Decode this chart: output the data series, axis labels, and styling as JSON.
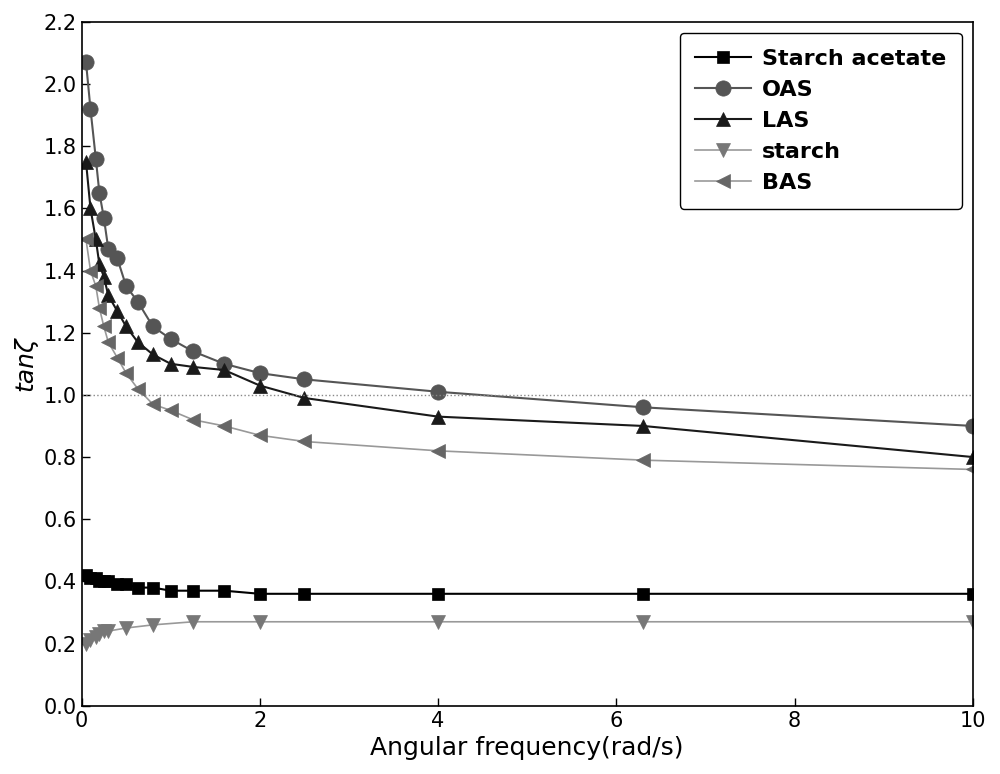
{
  "title": "",
  "xlabel": "Angular frequency(rad/s)",
  "ylabel": "tanζ",
  "xlim": [
    0,
    10
  ],
  "ylim": [
    0.0,
    2.2
  ],
  "yticks": [
    0.0,
    0.2,
    0.4,
    0.6,
    0.8,
    1.0,
    1.2,
    1.4,
    1.6,
    1.8,
    2.0,
    2.2
  ],
  "xticks": [
    0,
    2,
    4,
    6,
    8,
    10
  ],
  "hline_y": 1.0,
  "series": [
    {
      "label": "Starch acetate",
      "line_color": "#000000",
      "marker_color": "#000000",
      "marker": "s",
      "markersize": 9,
      "linewidth": 1.5,
      "x": [
        0.05,
        0.1,
        0.16,
        0.2,
        0.25,
        0.3,
        0.4,
        0.5,
        0.63,
        0.8,
        1.0,
        1.25,
        1.6,
        2.0,
        2.5,
        4.0,
        6.3,
        10.0
      ],
      "y": [
        0.42,
        0.41,
        0.41,
        0.4,
        0.4,
        0.4,
        0.39,
        0.39,
        0.38,
        0.38,
        0.37,
        0.37,
        0.37,
        0.36,
        0.36,
        0.36,
        0.36,
        0.36
      ]
    },
    {
      "label": "OAS",
      "line_color": "#555555",
      "marker_color": "#555555",
      "marker": "o",
      "markersize": 11,
      "linewidth": 1.5,
      "x": [
        0.05,
        0.1,
        0.16,
        0.2,
        0.25,
        0.3,
        0.4,
        0.5,
        0.63,
        0.8,
        1.0,
        1.25,
        1.6,
        2.0,
        2.5,
        4.0,
        6.3,
        10.0
      ],
      "y": [
        2.07,
        1.92,
        1.76,
        1.65,
        1.57,
        1.47,
        1.44,
        1.35,
        1.3,
        1.22,
        1.18,
        1.14,
        1.1,
        1.07,
        1.05,
        1.01,
        0.96,
        0.9
      ]
    },
    {
      "label": "LAS",
      "line_color": "#1a1a1a",
      "marker_color": "#1a1a1a",
      "marker": "^",
      "markersize": 10,
      "linewidth": 1.5,
      "x": [
        0.05,
        0.1,
        0.16,
        0.2,
        0.25,
        0.3,
        0.4,
        0.5,
        0.63,
        0.8,
        1.0,
        1.25,
        1.6,
        2.0,
        2.5,
        4.0,
        6.3,
        10.0
      ],
      "y": [
        1.75,
        1.6,
        1.5,
        1.42,
        1.38,
        1.32,
        1.27,
        1.22,
        1.17,
        1.13,
        1.1,
        1.09,
        1.08,
        1.03,
        0.99,
        0.93,
        0.9,
        0.8
      ]
    },
    {
      "label": "starch",
      "line_color": "#999999",
      "marker_color": "#777777",
      "marker": "v",
      "markersize": 10,
      "linewidth": 1.2,
      "x": [
        0.05,
        0.1,
        0.16,
        0.2,
        0.25,
        0.3,
        0.5,
        0.8,
        1.25,
        2.0,
        4.0,
        6.3,
        10.0
      ],
      "y": [
        0.2,
        0.21,
        0.22,
        0.23,
        0.24,
        0.24,
        0.25,
        0.26,
        0.27,
        0.27,
        0.27,
        0.27,
        0.27
      ]
    },
    {
      "label": "BAS",
      "line_color": "#999999",
      "marker_color": "#666666",
      "marker": "<",
      "markersize": 10,
      "linewidth": 1.2,
      "x": [
        0.05,
        0.1,
        0.16,
        0.2,
        0.25,
        0.3,
        0.4,
        0.5,
        0.63,
        0.8,
        1.0,
        1.25,
        1.6,
        2.0,
        2.5,
        4.0,
        6.3,
        10.0
      ],
      "y": [
        1.5,
        1.4,
        1.35,
        1.28,
        1.22,
        1.17,
        1.12,
        1.07,
        1.02,
        0.97,
        0.95,
        0.92,
        0.9,
        0.87,
        0.85,
        0.82,
        0.79,
        0.76
      ]
    }
  ]
}
